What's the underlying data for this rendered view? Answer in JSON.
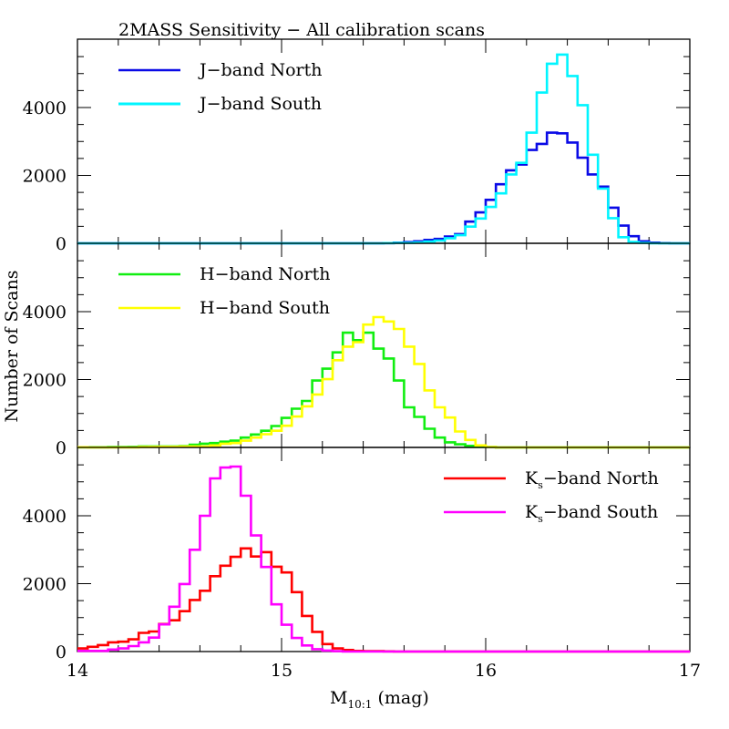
{
  "chart_data": {
    "type": "histogram",
    "title": "2MASS Sensitivity − All calibration scans",
    "xlabel": {
      "main": "M",
      "subscript": "10:1",
      "suffix": " (mag)"
    },
    "ylabel": "Number of Scans",
    "xlim": [
      14,
      17
    ],
    "x_ticks": [
      14,
      15,
      16,
      17
    ],
    "x_tick_labels": [
      "14",
      "15",
      "16",
      "17"
    ],
    "x_minor_step": 0.2,
    "bin_start": 14.0,
    "bin_width": 0.05,
    "grid": false,
    "panels": [
      {
        "id": "j-band",
        "ylim": [
          0,
          6000
        ],
        "y_ticks": [
          0,
          2000,
          4000
        ],
        "y_tick_labels": [
          "0",
          "2000",
          "4000"
        ],
        "y_minor_step": 500,
        "legend_position": "top-left",
        "series": [
          {
            "name": "J−band North",
            "label_main": "J−band North",
            "label_sub": "",
            "color": "#0a0ae6",
            "width": 2.6,
            "bins": {
              "30": 5,
              "31": 20,
              "32": 35,
              "33": 60,
              "34": 100,
              "35": 130,
              "36": 200,
              "37": 270,
              "38": 640,
              "39": 910,
              "40": 1280,
              "41": 1740,
              "42": 2150,
              "43": 2320,
              "44": 2750,
              "45": 2930,
              "46": 3260,
              "47": 3240,
              "48": 2970,
              "49": 2520,
              "50": 2030,
              "51": 1670,
              "52": 1050,
              "53": 520,
              "54": 210,
              "55": 60,
              "56": 20,
              "57": 5
            }
          },
          {
            "name": "J−band South",
            "label_main": "J−band South",
            "label_sub": "",
            "color": "#00f5ff",
            "width": 2.6,
            "bins": {
              "30": 5,
              "31": 10,
              "32": 10,
              "33": 25,
              "34": 50,
              "35": 80,
              "36": 150,
              "37": 240,
              "38": 490,
              "39": 730,
              "40": 1070,
              "41": 1470,
              "42": 2030,
              "43": 2370,
              "44": 3260,
              "45": 4440,
              "46": 5290,
              "47": 5560,
              "48": 4930,
              "49": 4070,
              "50": 2610,
              "51": 1610,
              "52": 740,
              "53": 180,
              "54": 40,
              "55": 10
            }
          }
        ]
      },
      {
        "id": "h-band",
        "ylim": [
          0,
          6000
        ],
        "y_ticks": [
          0,
          2000,
          4000
        ],
        "y_tick_labels": [
          "0",
          "2000",
          "4000"
        ],
        "y_minor_step": 500,
        "legend_position": "top-left",
        "series": [
          {
            "name": "H−band North",
            "label_main": "H−band North",
            "label_sub": "",
            "color": "#11ee11",
            "width": 2.6,
            "bins": {
              "0": 5,
              "1": 5,
              "2": 5,
              "3": 10,
              "4": 10,
              "5": 15,
              "6": 30,
              "7": 30,
              "8": 30,
              "9": 30,
              "10": 40,
              "11": 80,
              "12": 110,
              "13": 130,
              "14": 170,
              "15": 200,
              "16": 290,
              "17": 380,
              "18": 490,
              "19": 630,
              "20": 870,
              "21": 1140,
              "22": 1370,
              "23": 1970,
              "24": 2320,
              "25": 2800,
              "26": 3380,
              "27": 3160,
              "28": 3380,
              "29": 2910,
              "30": 2620,
              "31": 1970,
              "32": 1180,
              "33": 900,
              "34": 550,
              "35": 290,
              "36": 150,
              "37": 90,
              "38": 45,
              "39": 20,
              "40": 10
            }
          },
          {
            "name": "H−band South",
            "label_main": "H−band South",
            "label_sub": "",
            "color": "#ffff00",
            "width": 2.6,
            "bins": {
              "0": 5,
              "6": 10,
              "7": 15,
              "8": 20,
              "9": 20,
              "10": 25,
              "11": 30,
              "12": 30,
              "13": 60,
              "14": 110,
              "15": 130,
              "16": 200,
              "17": 290,
              "18": 390,
              "19": 490,
              "20": 640,
              "21": 910,
              "22": 1210,
              "23": 1560,
              "24": 2010,
              "25": 2570,
              "26": 2970,
              "27": 3100,
              "28": 3620,
              "29": 3840,
              "30": 3710,
              "31": 3490,
              "32": 2970,
              "33": 2460,
              "34": 1680,
              "35": 1180,
              "36": 880,
              "37": 470,
              "38": 220,
              "39": 60,
              "40": 10
            }
          }
        ]
      },
      {
        "id": "ks-band",
        "ylim": [
          0,
          6000
        ],
        "y_ticks": [
          0,
          2000,
          4000
        ],
        "y_tick_labels": [
          "0",
          "2000",
          "4000"
        ],
        "y_minor_step": 500,
        "legend_position": "top-right",
        "series": [
          {
            "name": "Ks−band North",
            "label_main": "K",
            "label_sub": "s",
            "label_rest": "−band North",
            "color": "#ff0000",
            "width": 2.6,
            "bins": {
              "0": 90,
              "1": 140,
              "2": 190,
              "3": 270,
              "4": 290,
              "5": 360,
              "6": 550,
              "7": 590,
              "8": 810,
              "9": 920,
              "10": 1190,
              "11": 1520,
              "12": 1790,
              "13": 2220,
              "14": 2530,
              "15": 2790,
              "16": 3040,
              "17": 2800,
              "18": 2930,
              "19": 2500,
              "20": 2330,
              "21": 1750,
              "22": 1050,
              "23": 580,
              "24": 220,
              "25": 90,
              "26": 45,
              "27": 20,
              "28": 10,
              "29": 10,
              "30": 5
            }
          },
          {
            "name": "Ks−band South",
            "label_main": "K",
            "label_sub": "s",
            "label_rest": "−band South",
            "color": "#ff00ff",
            "width": 2.6,
            "bins": {
              "0": 20,
              "1": 20,
              "2": 20,
              "3": 60,
              "4": 90,
              "5": 160,
              "6": 270,
              "7": 410,
              "8": 800,
              "9": 1320,
              "10": 1990,
              "11": 3000,
              "12": 4000,
              "13": 5100,
              "14": 5420,
              "15": 5450,
              "16": 4590,
              "17": 3420,
              "18": 2490,
              "19": 1390,
              "20": 790,
              "21": 400,
              "22": 180,
              "23": 70,
              "24": 30,
              "25": 10
            }
          }
        ]
      }
    ]
  }
}
